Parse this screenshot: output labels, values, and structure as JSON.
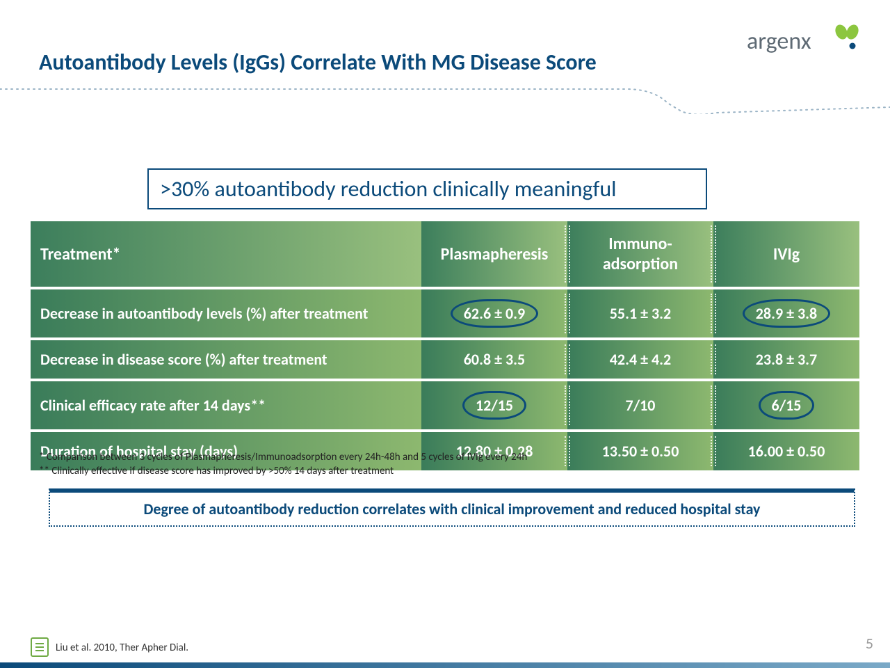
{
  "title": "Autoantibody Levels (IgGs) Correlate With MG Disease Score",
  "brand": {
    "name": "argenx",
    "text_color": "#5e6a74",
    "dot_color": "#0b4a7a",
    "leaf_color": "#8cc63f"
  },
  "callout": ">30% autoantibody reduction clinically meaningful",
  "table": {
    "columns": [
      {
        "label": "Treatment*",
        "key": "metric"
      },
      {
        "label": "Plasmapheresis",
        "key": "plasma"
      },
      {
        "label": "Immuno-\nadsorption",
        "key": "immuno"
      },
      {
        "label": "IVIg",
        "key": "ivig"
      }
    ],
    "rows": [
      {
        "metric": "Decrease in autoantibody levels (%) after treatment",
        "plasma": "62.6 ± 0.9",
        "immuno": "55.1 ± 3.2",
        "ivig": "28.9 ± 3.8",
        "circled": [
          "plasma",
          "ivig"
        ]
      },
      {
        "metric": "Decrease in disease score (%) after treatment",
        "plasma": "60.8 ± 3.5",
        "immuno": "42.4 ± 4.2",
        "ivig": "23.8 ± 3.7",
        "circled": []
      },
      {
        "metric": "Clinical efficacy rate after 14 days**",
        "plasma": "12/15",
        "immuno": "7/10",
        "ivig": "6/15",
        "circled": [
          "plasma",
          "ivig"
        ]
      },
      {
        "metric": "Duration of hospital stay (days)",
        "plasma": "12.80 ± 0.28",
        "immuno": "13.50 ± 0.50",
        "ivig": "16.00 ± 0.50",
        "circled": []
      }
    ],
    "header_bg_gradient": [
      "#3c7e5c",
      "#99c07e"
    ],
    "row_bg_gradient": [
      "#3a7c5a",
      "#8db86f"
    ],
    "text_color": "#ffffff",
    "circle_border_color": "#0b4a7a"
  },
  "footnotes": {
    "f1": "* Comparison between 3 cycles of Plasmapheresis/Immunoadsorption every 24h-48h and 5 cycles of IVIg every 24h",
    "f2": "** Clinically effective if disease score has improved by >50% 14 days after treatment"
  },
  "conclusion": "Degree of autoantibody reduction correlates with clinical improvement and reduced hospital stay",
  "citation": "Liu et al. 2010, Ther Apher Dial.",
  "page_number": "5",
  "colors": {
    "title": "#0b4a7a",
    "callout_border": "#0b4a7a",
    "conclusion_border": "#0b4a7a",
    "footnote_text": "#222222",
    "page_num": "#9a9a9a",
    "bottom_bar_gradient": [
      "#0b4a7a",
      "#7aa9c7"
    ]
  }
}
